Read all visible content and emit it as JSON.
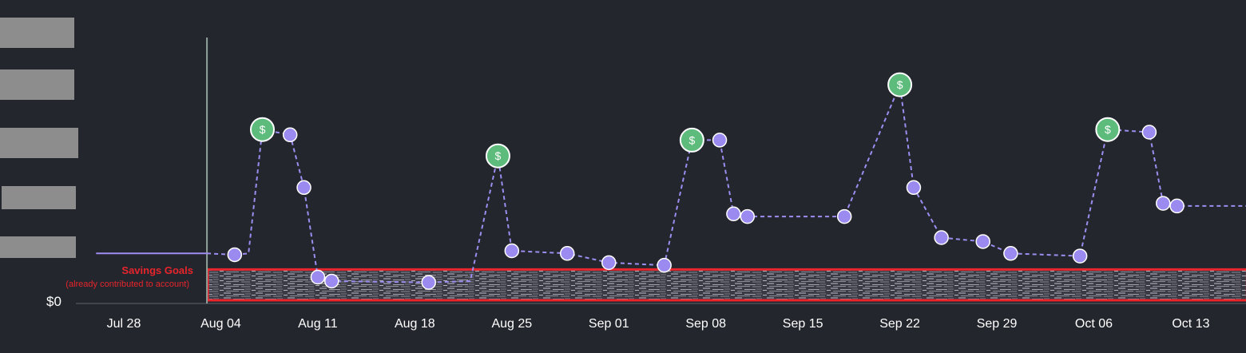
{
  "colors": {
    "background": "#23262d",
    "line": "#9d8df1",
    "point": "#9b8aef",
    "income": "#5dbb7c",
    "annotation": "#e8242c",
    "today": "#8fa39a",
    "redaction": "#8d8d8d"
  },
  "chart_data": {
    "type": "line",
    "x_ticks": [
      "Jul 28",
      "Aug 04",
      "Aug 11",
      "Aug 18",
      "Aug 25",
      "Sep 01",
      "Sep 08",
      "Sep 15",
      "Sep 22",
      "Sep 29",
      "Oct 06",
      "Oct 13"
    ],
    "y_tick_labels": [
      "$0"
    ],
    "y_axis_values_redacted": true,
    "today_marker": "Aug 03",
    "history": {
      "style": "solid",
      "points": [
        {
          "x": "Jul 26",
          "y": 0.19
        },
        {
          "x": "Aug 03",
          "y": 0.19
        }
      ]
    },
    "projection": {
      "style": "dashed",
      "points": [
        {
          "x": "Aug 03",
          "y": 0.19,
          "marker": "none"
        },
        {
          "x": "Aug 05",
          "y": 0.185,
          "marker": "point"
        },
        {
          "x": "Aug 06",
          "y": 0.19,
          "marker": "none"
        },
        {
          "x": "Aug 07",
          "y": 0.66,
          "marker": "income"
        },
        {
          "x": "Aug 09",
          "y": 0.64,
          "marker": "point"
        },
        {
          "x": "Aug 10",
          "y": 0.44,
          "marker": "point"
        },
        {
          "x": "Aug 11",
          "y": 0.1,
          "marker": "point"
        },
        {
          "x": "Aug 12",
          "y": 0.085,
          "marker": "point"
        },
        {
          "x": "Aug 19",
          "y": 0.08,
          "marker": "point"
        },
        {
          "x": "Aug 22",
          "y": 0.085,
          "marker": "none"
        },
        {
          "x": "Aug 24",
          "y": 0.56,
          "marker": "income"
        },
        {
          "x": "Aug 25",
          "y": 0.2,
          "marker": "point"
        },
        {
          "x": "Aug 29",
          "y": 0.19,
          "marker": "point"
        },
        {
          "x": "Sep 01",
          "y": 0.155,
          "marker": "point"
        },
        {
          "x": "Sep 05",
          "y": 0.145,
          "marker": "point"
        },
        {
          "x": "Sep 07",
          "y": 0.62,
          "marker": "income"
        },
        {
          "x": "Sep 09",
          "y": 0.62,
          "marker": "point"
        },
        {
          "x": "Sep 10",
          "y": 0.34,
          "marker": "point"
        },
        {
          "x": "Sep 11",
          "y": 0.33,
          "marker": "point"
        },
        {
          "x": "Sep 18",
          "y": 0.33,
          "marker": "point"
        },
        {
          "x": "Sep 22",
          "y": 0.83,
          "marker": "income"
        },
        {
          "x": "Sep 23",
          "y": 0.44,
          "marker": "point"
        },
        {
          "x": "Sep 25",
          "y": 0.25,
          "marker": "point"
        },
        {
          "x": "Sep 28",
          "y": 0.235,
          "marker": "point"
        },
        {
          "x": "Sep 30",
          "y": 0.19,
          "marker": "point"
        },
        {
          "x": "Oct 05",
          "y": 0.18,
          "marker": "point"
        },
        {
          "x": "Oct 07",
          "y": 0.66,
          "marker": "income"
        },
        {
          "x": "Oct 10",
          "y": 0.65,
          "marker": "point"
        },
        {
          "x": "Oct 11",
          "y": 0.38,
          "marker": "point"
        },
        {
          "x": "Oct 12",
          "y": 0.37,
          "marker": "point"
        },
        {
          "x": "Oct 17",
          "y": 0.37,
          "marker": "none"
        }
      ]
    },
    "income_marker_symbol": "$",
    "savings_band": {
      "label": "Savings Goals",
      "sublabel": "(already contributed to account)",
      "from": "Aug 03",
      "to": "Oct 17",
      "y_bottom": 0.0,
      "y_top": 0.12,
      "content_redacted": true
    }
  }
}
